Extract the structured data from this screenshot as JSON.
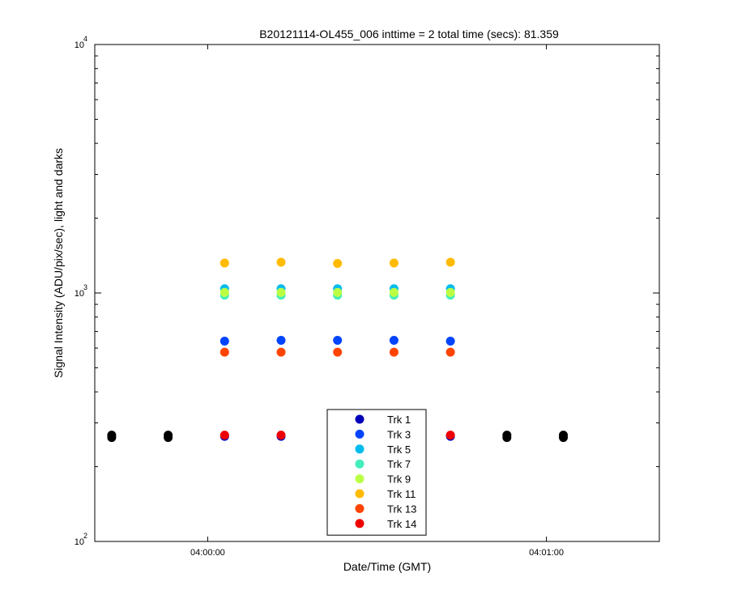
{
  "chart_data": {
    "type": "scatter",
    "title": "B20121114-OL455_006 inttime = 2 total time (secs): 81.359",
    "xlabel": "Date/Time (GMT)",
    "ylabel": "Signal Intensity (ADU/pix/sec), light and darks",
    "x_scale": "time",
    "y_scale": "log",
    "xlim": [
      "03:59:40",
      "04:01:20"
    ],
    "ylim": [
      100,
      10000
    ],
    "x_ticks": [
      {
        "value": "04:00:00",
        "label": "04:00:00"
      },
      {
        "value": "04:01:00",
        "label": "04:01:00"
      }
    ],
    "y_ticks": [
      {
        "value": 100,
        "base": "10",
        "exp": "2"
      },
      {
        "value": 1000,
        "base": "10",
        "exp": "3"
      },
      {
        "value": 10000,
        "base": "10",
        "exp": "4"
      }
    ],
    "grid": false,
    "legend_position": "bottom-center",
    "series": [
      {
        "name": "Trk 1",
        "color": "#0000bb",
        "points": [
          [
            "04:00:03",
            265
          ],
          [
            "04:00:13",
            265
          ],
          [
            "04:00:23",
            265
          ],
          [
            "04:00:33",
            265
          ],
          [
            "04:00:43",
            265
          ]
        ]
      },
      {
        "name": "Trk 3",
        "color": "#0044ff",
        "points": [
          [
            "04:00:03",
            640
          ],
          [
            "04:00:13",
            645
          ],
          [
            "04:00:23",
            645
          ],
          [
            "04:00:33",
            645
          ],
          [
            "04:00:43",
            640
          ]
        ]
      },
      {
        "name": "Trk 5",
        "color": "#00bbee",
        "points": [
          [
            "04:00:03",
            1040
          ],
          [
            "04:00:13",
            1040
          ],
          [
            "04:00:23",
            1040
          ],
          [
            "04:00:33",
            1040
          ],
          [
            "04:00:43",
            1040
          ]
        ]
      },
      {
        "name": "Trk 7",
        "color": "#44eebb",
        "points": [
          [
            "04:00:03",
            980
          ],
          [
            "04:00:13",
            980
          ],
          [
            "04:00:23",
            980
          ],
          [
            "04:00:33",
            980
          ],
          [
            "04:00:43",
            980
          ]
        ]
      },
      {
        "name": "Trk 9",
        "color": "#bbff44",
        "points": [
          [
            "04:00:03",
            1005
          ],
          [
            "04:00:13",
            1005
          ],
          [
            "04:00:23",
            1005
          ],
          [
            "04:00:33",
            1005
          ],
          [
            "04:00:43",
            1005
          ]
        ]
      },
      {
        "name": "Trk 11",
        "color": "#ffbb00",
        "points": [
          [
            "04:00:03",
            1320
          ],
          [
            "04:00:13",
            1330
          ],
          [
            "04:00:23",
            1315
          ],
          [
            "04:00:33",
            1320
          ],
          [
            "04:00:43",
            1330
          ]
        ]
      },
      {
        "name": "Trk 13",
        "color": "#ff4400",
        "points": [
          [
            "04:00:03",
            578
          ],
          [
            "04:00:13",
            578
          ],
          [
            "04:00:23",
            578
          ],
          [
            "04:00:33",
            578
          ],
          [
            "04:00:43",
            578
          ]
        ]
      },
      {
        "name": "Trk 14",
        "color": "#ee0000",
        "points": [
          [
            "04:00:03",
            268
          ],
          [
            "04:00:13",
            268
          ],
          [
            "04:00:23",
            268
          ],
          [
            "04:00:33",
            268
          ],
          [
            "04:00:43",
            268
          ]
        ]
      },
      {
        "name": "",
        "color": "#000000",
        "points": [
          [
            "03:59:43",
            262
          ],
          [
            "03:59:43",
            268
          ],
          [
            "03:59:53",
            262
          ],
          [
            "03:59:53",
            268
          ],
          [
            "04:00:53",
            262
          ],
          [
            "04:00:53",
            268
          ],
          [
            "04:01:03",
            262
          ],
          [
            "04:01:03",
            268
          ]
        ]
      }
    ]
  }
}
